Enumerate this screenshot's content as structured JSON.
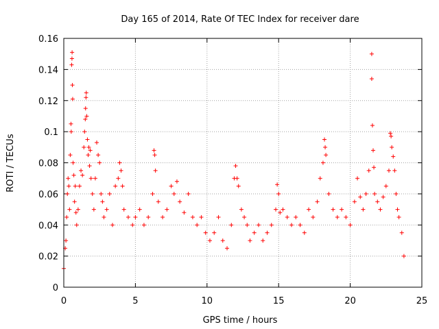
{
  "chart_data": {
    "type": "scatter",
    "title": "Day 165 of 2014, Rate Of TEC Index for receiver dare",
    "xlabel": "GPS time / hours",
    "ylabel": "ROTI / TECUs",
    "xlim": [
      0,
      25
    ],
    "ylim": [
      0,
      0.16
    ],
    "xticks": [
      "0",
      "5",
      "10",
      "15",
      "20",
      "25"
    ],
    "yticks": [
      "0",
      "0.02",
      "0.04",
      "0.06",
      "0.08",
      "0.1",
      "0.12",
      "0.14",
      "0.16"
    ],
    "grid": true,
    "marker": "plus",
    "color": "#ff0000",
    "series": [
      {
        "points": [
          [
            0.0,
            0.012
          ],
          [
            0.1,
            0.025
          ],
          [
            0.15,
            0.03
          ],
          [
            0.2,
            0.045
          ],
          [
            0.25,
            0.06
          ],
          [
            0.3,
            0.07
          ],
          [
            0.35,
            0.065
          ],
          [
            0.4,
            0.05
          ],
          [
            0.45,
            0.085
          ],
          [
            0.5,
            0.105
          ],
          [
            0.52,
            0.1
          ],
          [
            0.55,
            0.143
          ],
          [
            0.57,
            0.147
          ],
          [
            0.58,
            0.151
          ],
          [
            0.6,
            0.13
          ],
          [
            0.62,
            0.121
          ],
          [
            0.65,
            0.08
          ],
          [
            0.7,
            0.072
          ],
          [
            0.75,
            0.055
          ],
          [
            0.8,
            0.065
          ],
          [
            0.85,
            0.048
          ],
          [
            0.9,
            0.04
          ],
          [
            1.0,
            0.05
          ],
          [
            1.1,
            0.065
          ],
          [
            1.2,
            0.075
          ],
          [
            1.3,
            0.072
          ],
          [
            1.4,
            0.09
          ],
          [
            1.45,
            0.1
          ],
          [
            1.5,
            0.108
          ],
          [
            1.52,
            0.115
          ],
          [
            1.55,
            0.122
          ],
          [
            1.57,
            0.125
          ],
          [
            1.6,
            0.11
          ],
          [
            1.65,
            0.095
          ],
          [
            1.7,
            0.085
          ],
          [
            1.75,
            0.09
          ],
          [
            1.8,
            0.078
          ],
          [
            1.85,
            0.088
          ],
          [
            1.9,
            0.07
          ],
          [
            2.0,
            0.06
          ],
          [
            2.1,
            0.05
          ],
          [
            2.2,
            0.07
          ],
          [
            2.3,
            0.093
          ],
          [
            2.4,
            0.085
          ],
          [
            2.5,
            0.08
          ],
          [
            2.6,
            0.06
          ],
          [
            2.7,
            0.055
          ],
          [
            2.8,
            0.045
          ],
          [
            3.0,
            0.05
          ],
          [
            3.2,
            0.06
          ],
          [
            3.4,
            0.04
          ],
          [
            3.6,
            0.065
          ],
          [
            3.8,
            0.07
          ],
          [
            3.9,
            0.08
          ],
          [
            4.0,
            0.075
          ],
          [
            4.1,
            0.065
          ],
          [
            4.2,
            0.05
          ],
          [
            4.5,
            0.045
          ],
          [
            4.8,
            0.04
          ],
          [
            5.0,
            0.045
          ],
          [
            5.3,
            0.05
          ],
          [
            5.6,
            0.04
          ],
          [
            5.9,
            0.045
          ],
          [
            6.2,
            0.06
          ],
          [
            6.3,
            0.088
          ],
          [
            6.35,
            0.085
          ],
          [
            6.4,
            0.075
          ],
          [
            6.6,
            0.055
          ],
          [
            6.9,
            0.045
          ],
          [
            7.2,
            0.05
          ],
          [
            7.5,
            0.065
          ],
          [
            7.7,
            0.06
          ],
          [
            7.9,
            0.068
          ],
          [
            8.1,
            0.055
          ],
          [
            8.4,
            0.048
          ],
          [
            8.7,
            0.06
          ],
          [
            9.0,
            0.045
          ],
          [
            9.3,
            0.04
          ],
          [
            9.6,
            0.045
          ],
          [
            9.9,
            0.035
          ],
          [
            10.2,
            0.03
          ],
          [
            10.5,
            0.035
          ],
          [
            10.8,
            0.045
          ],
          [
            11.1,
            0.03
          ],
          [
            11.4,
            0.025
          ],
          [
            11.7,
            0.04
          ],
          [
            11.9,
            0.07
          ],
          [
            12.0,
            0.078
          ],
          [
            12.1,
            0.07
          ],
          [
            12.2,
            0.065
          ],
          [
            12.4,
            0.05
          ],
          [
            12.6,
            0.045
          ],
          [
            12.8,
            0.04
          ],
          [
            13.0,
            0.03
          ],
          [
            13.3,
            0.035
          ],
          [
            13.6,
            0.04
          ],
          [
            13.9,
            0.03
          ],
          [
            14.2,
            0.035
          ],
          [
            14.5,
            0.04
          ],
          [
            14.8,
            0.05
          ],
          [
            14.9,
            0.066
          ],
          [
            15.0,
            0.06
          ],
          [
            15.1,
            0.048
          ],
          [
            15.3,
            0.05
          ],
          [
            15.6,
            0.045
          ],
          [
            15.9,
            0.04
          ],
          [
            16.2,
            0.045
          ],
          [
            16.5,
            0.04
          ],
          [
            16.8,
            0.035
          ],
          [
            17.1,
            0.05
          ],
          [
            17.4,
            0.045
          ],
          [
            17.7,
            0.055
          ],
          [
            17.9,
            0.07
          ],
          [
            18.1,
            0.08
          ],
          [
            18.2,
            0.095
          ],
          [
            18.25,
            0.09
          ],
          [
            18.3,
            0.085
          ],
          [
            18.5,
            0.06
          ],
          [
            18.8,
            0.05
          ],
          [
            19.1,
            0.045
          ],
          [
            19.4,
            0.05
          ],
          [
            19.7,
            0.045
          ],
          [
            20.0,
            0.04
          ],
          [
            20.3,
            0.055
          ],
          [
            20.5,
            0.07
          ],
          [
            20.7,
            0.058
          ],
          [
            20.9,
            0.05
          ],
          [
            21.1,
            0.06
          ],
          [
            21.3,
            0.075
          ],
          [
            21.5,
            0.15
          ],
          [
            21.5,
            0.134
          ],
          [
            21.55,
            0.104
          ],
          [
            21.6,
            0.088
          ],
          [
            21.65,
            0.077
          ],
          [
            21.7,
            0.06
          ],
          [
            21.9,
            0.055
          ],
          [
            22.1,
            0.05
          ],
          [
            22.3,
            0.058
          ],
          [
            22.5,
            0.065
          ],
          [
            22.7,
            0.075
          ],
          [
            22.8,
            0.099
          ],
          [
            22.85,
            0.097
          ],
          [
            22.9,
            0.09
          ],
          [
            23.0,
            0.084
          ],
          [
            23.1,
            0.075
          ],
          [
            23.2,
            0.06
          ],
          [
            23.3,
            0.05
          ],
          [
            23.4,
            0.045
          ],
          [
            23.6,
            0.035
          ],
          [
            23.75,
            0.02
          ]
        ]
      }
    ]
  }
}
